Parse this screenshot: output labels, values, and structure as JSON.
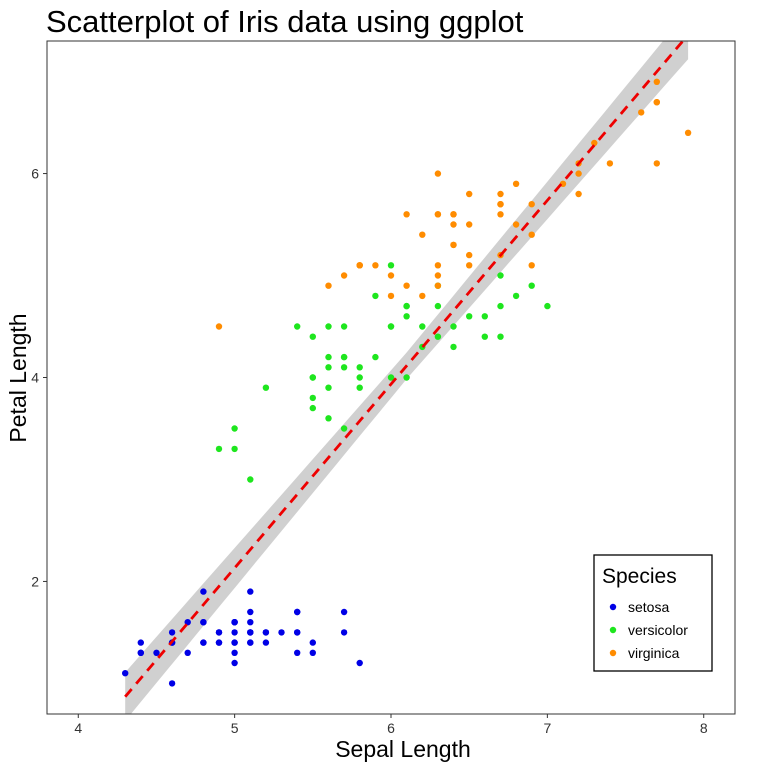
{
  "chart_data": {
    "type": "scatter",
    "title": "Scatterplot of Iris data using ggplot",
    "xlabel": "Sepal Length",
    "ylabel": "Petal Length",
    "xlim": [
      3.8,
      8.2
    ],
    "ylim": [
      0.7,
      7.3
    ],
    "xticks": [
      4,
      5,
      6,
      7,
      8
    ],
    "yticks": [
      2,
      4,
      6
    ],
    "grid": false,
    "legend": {
      "title": "Species",
      "position": "bottom-right",
      "entries": [
        "setosa",
        "versicolor",
        "virginica"
      ]
    },
    "series": [
      {
        "name": "setosa",
        "color": "#0000e6",
        "points": [
          [
            5.1,
            1.4
          ],
          [
            4.9,
            1.4
          ],
          [
            4.7,
            1.3
          ],
          [
            4.6,
            1.5
          ],
          [
            5.0,
            1.4
          ],
          [
            5.4,
            1.7
          ],
          [
            4.6,
            1.4
          ],
          [
            5.0,
            1.5
          ],
          [
            4.4,
            1.4
          ],
          [
            4.9,
            1.5
          ],
          [
            5.4,
            1.5
          ],
          [
            4.8,
            1.6
          ],
          [
            4.8,
            1.4
          ],
          [
            4.3,
            1.1
          ],
          [
            5.8,
            1.2
          ],
          [
            5.7,
            1.5
          ],
          [
            5.4,
            1.3
          ],
          [
            5.1,
            1.4
          ],
          [
            5.7,
            1.7
          ],
          [
            5.1,
            1.5
          ],
          [
            5.4,
            1.7
          ],
          [
            5.1,
            1.5
          ],
          [
            4.6,
            1.0
          ],
          [
            5.1,
            1.7
          ],
          [
            4.8,
            1.9
          ],
          [
            5.0,
            1.6
          ],
          [
            5.0,
            1.6
          ],
          [
            5.2,
            1.5
          ],
          [
            5.2,
            1.4
          ],
          [
            4.7,
            1.6
          ],
          [
            4.8,
            1.6
          ],
          [
            5.4,
            1.5
          ],
          [
            5.2,
            1.5
          ],
          [
            5.5,
            1.4
          ],
          [
            4.9,
            1.5
          ],
          [
            5.0,
            1.2
          ],
          [
            5.5,
            1.3
          ],
          [
            4.9,
            1.4
          ],
          [
            4.4,
            1.3
          ],
          [
            5.1,
            1.5
          ],
          [
            5.0,
            1.3
          ],
          [
            4.5,
            1.3
          ],
          [
            4.4,
            1.3
          ],
          [
            5.0,
            1.6
          ],
          [
            5.1,
            1.9
          ],
          [
            4.8,
            1.4
          ],
          [
            5.1,
            1.6
          ],
          [
            4.6,
            1.4
          ],
          [
            5.3,
            1.5
          ],
          [
            5.0,
            1.4
          ]
        ]
      },
      {
        "name": "versicolor",
        "color": "#1ee61e",
        "points": [
          [
            7.0,
            4.7
          ],
          [
            6.4,
            4.5
          ],
          [
            6.9,
            4.9
          ],
          [
            5.5,
            4.0
          ],
          [
            6.5,
            4.6
          ],
          [
            5.7,
            4.5
          ],
          [
            6.3,
            4.7
          ],
          [
            4.9,
            3.3
          ],
          [
            6.6,
            4.6
          ],
          [
            5.2,
            3.9
          ],
          [
            5.0,
            3.5
          ],
          [
            5.9,
            4.2
          ],
          [
            6.0,
            4.0
          ],
          [
            6.1,
            4.7
          ],
          [
            5.6,
            3.6
          ],
          [
            6.7,
            4.4
          ],
          [
            5.6,
            4.5
          ],
          [
            5.8,
            4.1
          ],
          [
            6.2,
            4.5
          ],
          [
            5.6,
            3.9
          ],
          [
            5.9,
            4.8
          ],
          [
            6.1,
            4.0
          ],
          [
            6.3,
            4.9
          ],
          [
            6.1,
            4.7
          ],
          [
            6.4,
            4.3
          ],
          [
            6.6,
            4.4
          ],
          [
            6.8,
            4.8
          ],
          [
            6.7,
            5.0
          ],
          [
            6.0,
            4.5
          ],
          [
            5.7,
            3.5
          ],
          [
            5.5,
            3.8
          ],
          [
            5.5,
            3.7
          ],
          [
            5.8,
            3.9
          ],
          [
            6.0,
            5.1
          ],
          [
            5.4,
            4.5
          ],
          [
            6.0,
            4.5
          ],
          [
            6.7,
            4.7
          ],
          [
            6.3,
            4.4
          ],
          [
            5.6,
            4.1
          ],
          [
            5.5,
            4.0
          ],
          [
            5.5,
            4.4
          ],
          [
            6.1,
            4.6
          ],
          [
            5.8,
            4.0
          ],
          [
            5.0,
            3.3
          ],
          [
            5.6,
            4.2
          ],
          [
            5.7,
            4.2
          ],
          [
            5.7,
            4.2
          ],
          [
            6.2,
            4.3
          ],
          [
            5.1,
            3.0
          ],
          [
            5.7,
            4.1
          ]
        ]
      },
      {
        "name": "virginica",
        "color": "#ff8c00",
        "points": [
          [
            6.3,
            6.0
          ],
          [
            5.8,
            5.1
          ],
          [
            7.1,
            5.9
          ],
          [
            6.3,
            5.6
          ],
          [
            6.5,
            5.8
          ],
          [
            7.6,
            6.6
          ],
          [
            4.9,
            4.5
          ],
          [
            7.3,
            6.3
          ],
          [
            6.7,
            5.8
          ],
          [
            7.2,
            6.1
          ],
          [
            6.5,
            5.1
          ],
          [
            6.4,
            5.3
          ],
          [
            6.8,
            5.5
          ],
          [
            5.7,
            5.0
          ],
          [
            5.8,
            5.1
          ],
          [
            6.4,
            5.3
          ],
          [
            6.5,
            5.5
          ],
          [
            7.7,
            6.7
          ],
          [
            7.7,
            6.9
          ],
          [
            6.0,
            5.0
          ],
          [
            6.9,
            5.7
          ],
          [
            5.6,
            4.9
          ],
          [
            7.7,
            6.7
          ],
          [
            6.3,
            4.9
          ],
          [
            6.7,
            5.7
          ],
          [
            7.2,
            6.0
          ],
          [
            6.2,
            4.8
          ],
          [
            6.1,
            4.9
          ],
          [
            6.4,
            5.6
          ],
          [
            7.2,
            5.8
          ],
          [
            7.4,
            6.1
          ],
          [
            7.9,
            6.4
          ],
          [
            6.4,
            5.6
          ],
          [
            6.3,
            5.1
          ],
          [
            6.1,
            5.6
          ],
          [
            7.7,
            6.1
          ],
          [
            6.3,
            5.6
          ],
          [
            6.4,
            5.5
          ],
          [
            6.0,
            4.8
          ],
          [
            6.9,
            5.4
          ],
          [
            6.7,
            5.6
          ],
          [
            6.9,
            5.1
          ],
          [
            5.8,
            5.1
          ],
          [
            6.8,
            5.9
          ],
          [
            6.7,
            5.7
          ],
          [
            6.7,
            5.2
          ],
          [
            6.3,
            5.0
          ],
          [
            6.5,
            5.2
          ],
          [
            6.2,
            5.4
          ],
          [
            5.9,
            5.1
          ]
        ]
      }
    ],
    "fit": {
      "type": "linear",
      "x_range": [
        4.3,
        7.9
      ],
      "y_range": [
        0.87,
        7.36
      ],
      "color": "#ee0000",
      "band_color": "#d0d0d0"
    }
  }
}
